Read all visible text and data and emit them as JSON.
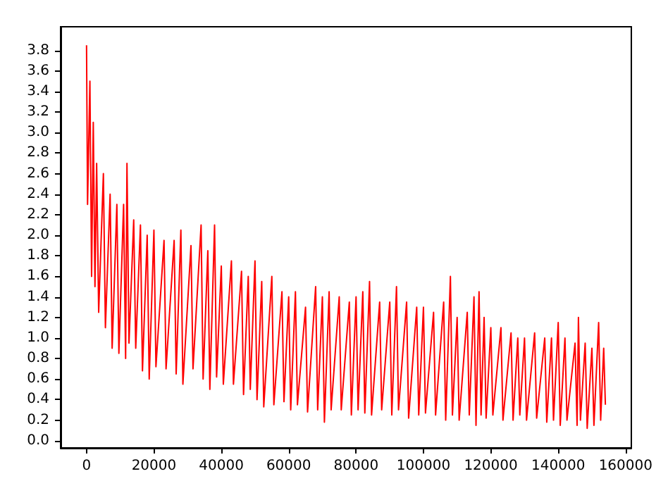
{
  "chart_data": {
    "type": "line",
    "x": [
      0,
      300,
      1000,
      1500,
      2000,
      2500,
      3000,
      3600,
      5000,
      5600,
      7000,
      7600,
      9000,
      9600,
      11000,
      11600,
      12000,
      12600,
      14000,
      14600,
      16000,
      16600,
      18000,
      18600,
      20000,
      20600,
      23000,
      23600,
      26000,
      26600,
      28000,
      28600,
      31000,
      31600,
      34000,
      34600,
      36000,
      36600,
      38000,
      38600,
      40000,
      40600,
      43000,
      43600,
      46000,
      46600,
      48000,
      48600,
      50000,
      50600,
      52000,
      52600,
      55000,
      55600,
      58000,
      58600,
      60000,
      60600,
      62000,
      62600,
      65000,
      65600,
      68000,
      68600,
      70000,
      70600,
      72000,
      72600,
      75000,
      75600,
      78000,
      78600,
      80000,
      80600,
      82000,
      82600,
      84000,
      84600,
      87000,
      87600,
      90000,
      90600,
      92000,
      92600,
      95000,
      95600,
      98000,
      98600,
      100000,
      100600,
      103000,
      103600,
      106000,
      106600,
      108000,
      108600,
      110000,
      110600,
      113000,
      113600,
      115000,
      115600,
      116500,
      117100,
      118000,
      118600,
      120000,
      120600,
      123000,
      123600,
      126000,
      126600,
      128000,
      128600,
      130000,
      130600,
      133000,
      133600,
      136000,
      136600,
      138000,
      138600,
      140000,
      140600,
      142000,
      142600,
      145000,
      145600,
      146000,
      146600,
      148000,
      148600,
      150000,
      150600,
      152000,
      152600,
      153500,
      154000
    ],
    "values": [
      3.85,
      2.3,
      3.5,
      1.6,
      3.1,
      1.5,
      2.7,
      1.25,
      2.6,
      1.1,
      2.4,
      0.9,
      2.3,
      0.85,
      2.3,
      0.8,
      2.7,
      0.95,
      2.15,
      0.9,
      2.1,
      0.68,
      2.0,
      0.6,
      2.05,
      0.72,
      1.95,
      0.7,
      1.95,
      0.65,
      2.05,
      0.55,
      1.9,
      0.7,
      2.1,
      0.6,
      1.85,
      0.5,
      2.1,
      0.62,
      1.7,
      0.55,
      1.75,
      0.55,
      1.65,
      0.45,
      1.6,
      0.5,
      1.75,
      0.4,
      1.55,
      0.33,
      1.6,
      0.35,
      1.45,
      0.38,
      1.4,
      0.3,
      1.45,
      0.35,
      1.3,
      0.28,
      1.5,
      0.3,
      1.4,
      0.18,
      1.45,
      0.3,
      1.4,
      0.3,
      1.35,
      0.25,
      1.4,
      0.3,
      1.45,
      0.27,
      1.55,
      0.25,
      1.35,
      0.3,
      1.35,
      0.25,
      1.5,
      0.3,
      1.35,
      0.22,
      1.3,
      0.25,
      1.3,
      0.27,
      1.25,
      0.25,
      1.35,
      0.2,
      1.6,
      0.25,
      1.2,
      0.2,
      1.25,
      0.25,
      1.4,
      0.15,
      1.45,
      0.25,
      1.2,
      0.22,
      1.1,
      0.25,
      1.1,
      0.2,
      1.05,
      0.2,
      1.0,
      0.25,
      1.0,
      0.2,
      1.05,
      0.22,
      1.0,
      0.18,
      1.0,
      0.2,
      1.15,
      0.15,
      1.0,
      0.2,
      0.95,
      0.15,
      1.2,
      0.2,
      0.95,
      0.12,
      0.9,
      0.15,
      1.15,
      0.2,
      0.9,
      0.35
    ],
    "color": "#ff0000",
    "xlim": [
      -7700,
      161700
    ],
    "ylim": [
      -0.07,
      4.03
    ],
    "xticks": [
      0,
      20000,
      40000,
      60000,
      80000,
      100000,
      120000,
      140000,
      160000
    ],
    "yticks": [
      {
        "value": 0,
        "label": "0.0"
      },
      {
        "value": 0.2,
        "label": "0.2"
      },
      {
        "value": 0.4,
        "label": "0.4"
      },
      {
        "value": 0.6,
        "label": "0.6"
      },
      {
        "value": 0.8,
        "label": "0.8"
      },
      {
        "value": 1,
        "label": "1.0"
      },
      {
        "value": 1.2,
        "label": "1.2"
      },
      {
        "value": 1.4,
        "label": "1.4"
      },
      {
        "value": 1.6,
        "label": "1.6"
      },
      {
        "value": 1.8,
        "label": "1.8"
      },
      {
        "value": 2,
        "label": "2.0"
      },
      {
        "value": 2.2,
        "label": "2.2"
      },
      {
        "value": 2.4,
        "label": "2.4"
      },
      {
        "value": 2.6,
        "label": "2.6"
      },
      {
        "value": 2.8,
        "label": "2.8"
      },
      {
        "value": 3,
        "label": "3.0"
      },
      {
        "value": 3.2,
        "label": "3.2"
      },
      {
        "value": 3.4,
        "label": "3.4"
      },
      {
        "value": 3.6,
        "label": "3.6"
      },
      {
        "value": 3.8,
        "label": "3.8"
      }
    ],
    "grid": false
  }
}
